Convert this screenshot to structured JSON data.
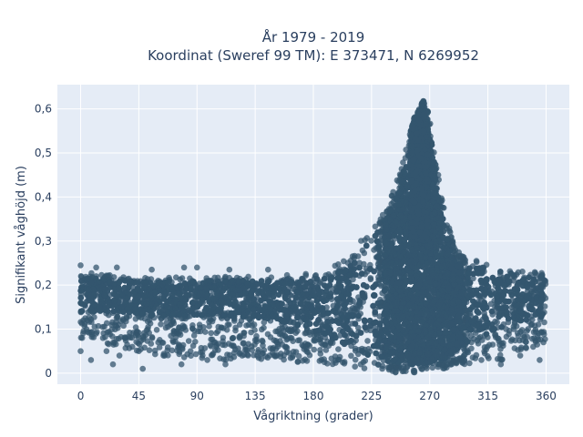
{
  "chart_data": {
    "type": "scatter",
    "title": "År 1979 - 2019",
    "subtitle": "Koordinat (Sweref 99 TM): E 373471, N 6269952",
    "xlabel": "Vågriktning (grader)",
    "ylabel": "Signifikant våghöjd (m)",
    "xlim": [
      -18,
      378
    ],
    "ylim": [
      -0.025,
      0.655
    ],
    "x_ticks": [
      0,
      45,
      90,
      135,
      180,
      225,
      270,
      315,
      360
    ],
    "x_tick_labels": [
      "0",
      "45",
      "90",
      "135",
      "180",
      "225",
      "270",
      "315",
      "360"
    ],
    "y_ticks": [
      0,
      0.1,
      0.2,
      0.3,
      0.4,
      0.5,
      0.6
    ],
    "y_tick_labels": [
      "0",
      "0,1",
      "0,2",
      "0,3",
      "0,4",
      "0,5",
      "0,6"
    ],
    "grid": true,
    "legend": "none",
    "colors": {
      "marker": "#34566e",
      "plot_bg": "#e5ecf6",
      "grid": "#ffffff",
      "text": "#2a3f5f"
    },
    "envelope": {
      "x": [
        0,
        30,
        60,
        90,
        120,
        150,
        180,
        200,
        210,
        225,
        235,
        245,
        252,
        258,
        262,
        265,
        268,
        272,
        276,
        282,
        290,
        300,
        315,
        330,
        345,
        360
      ],
      "upper": [
        0.23,
        0.22,
        0.22,
        0.22,
        0.22,
        0.22,
        0.23,
        0.25,
        0.28,
        0.33,
        0.38,
        0.44,
        0.52,
        0.58,
        0.6,
        0.62,
        0.6,
        0.56,
        0.47,
        0.36,
        0.28,
        0.26,
        0.25,
        0.24,
        0.23,
        0.23
      ],
      "lower": [
        0.08,
        0.06,
        0.04,
        0.03,
        0.03,
        0.03,
        0.02,
        0.02,
        0.01,
        0.01,
        0.01,
        0.0,
        0.0,
        0.0,
        0.0,
        0.0,
        0.0,
        0.01,
        0.01,
        0.01,
        0.02,
        0.02,
        0.03,
        0.03,
        0.05,
        0.07
      ],
      "dense_upper": [
        0.22,
        0.21,
        0.21,
        0.21,
        0.21,
        0.21,
        0.22,
        0.23,
        0.26,
        0.31,
        0.35,
        0.41,
        0.48,
        0.54,
        0.57,
        0.58,
        0.56,
        0.52,
        0.43,
        0.32,
        0.25,
        0.24,
        0.24,
        0.23,
        0.22,
        0.22
      ],
      "dense_lower": [
        0.14,
        0.14,
        0.13,
        0.13,
        0.13,
        0.12,
        0.1,
        0.07,
        0.05,
        0.03,
        0.03,
        0.02,
        0.02,
        0.02,
        0.02,
        0.02,
        0.02,
        0.02,
        0.03,
        0.03,
        0.05,
        0.07,
        0.09,
        0.11,
        0.12,
        0.13
      ]
    },
    "outliers": [
      [
        0,
        0.05
      ],
      [
        5,
        0.12
      ],
      [
        8,
        0.03
      ],
      [
        12,
        0.09
      ],
      [
        20,
        0.05
      ],
      [
        25,
        0.02
      ],
      [
        30,
        0.04
      ],
      [
        33,
        0.12
      ],
      [
        40,
        0.06
      ],
      [
        45,
        0.05
      ],
      [
        48,
        0.01
      ],
      [
        52,
        0.1
      ],
      [
        60,
        0.07
      ],
      [
        65,
        0.04
      ],
      [
        72,
        0.09
      ],
      [
        78,
        0.02
      ],
      [
        85,
        0.05
      ],
      [
        92,
        0.11
      ],
      [
        98,
        0.03
      ],
      [
        105,
        0.06
      ],
      [
        112,
        0.02
      ],
      [
        118,
        0.08
      ],
      [
        125,
        0.04
      ],
      [
        130,
        0.11
      ],
      [
        0,
        0.245
      ],
      [
        12,
        0.24
      ],
      [
        28,
        0.24
      ],
      [
        55,
        0.235
      ],
      [
        80,
        0.24
      ],
      [
        90,
        0.24
      ],
      [
        115,
        0.235
      ],
      [
        145,
        0.235
      ],
      [
        350,
        0.06
      ],
      [
        355,
        0.03
      ],
      [
        358,
        0.07
      ],
      [
        340,
        0.04
      ],
      [
        325,
        0.02
      ],
      [
        310,
        0.03
      ]
    ]
  }
}
